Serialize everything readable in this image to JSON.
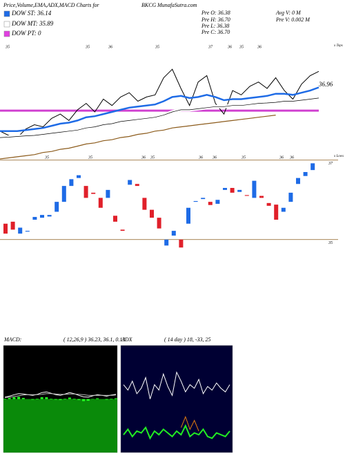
{
  "header": {
    "title": "Price,Volume,EMA,ADX,MACD Charts for",
    "symbol": "BKCG",
    "site": "MunafaSutra.com",
    "stats": [
      "Pre O: 36.38",
      "Avg V: 0  M",
      "Pre H: 36.70",
      "Pre V: 0.002  M",
      "Pre L: 36.38",
      "Pre C: 36.70"
    ]
  },
  "chart_data": [
    {
      "type": "line",
      "legend": [
        {
          "label": "DOW ST: 36.14",
          "color": "#1e6be6"
        },
        {
          "label": "DOW MT: 35.89",
          "color": "#ffffff"
        },
        {
          "label": "DOW PT: 0",
          "color": "#e040e0"
        }
      ],
      "ylim": [
        33,
        38.5
      ],
      "series": [
        {
          "color": "#000000",
          "width": 1,
          "values": [
            34.3,
            34.1,
            34.0,
            34.4,
            34.6,
            34.5,
            34.9,
            35.1,
            34.8,
            35.3,
            35.6,
            35.2,
            35.8,
            35.5,
            35.9,
            36.1,
            35.7,
            35.9,
            36.0,
            36.8,
            37.2,
            36.3,
            35.5,
            36.6,
            36.9,
            35.6,
            35.1,
            36.2,
            36.0,
            36.4,
            36.6,
            36.3,
            36.8,
            36.2,
            35.8,
            36.5,
            36.9,
            37.1
          ]
        },
        {
          "color": "#1e6be6",
          "width": 2.5,
          "values": [
            34.3,
            34.3,
            34.3,
            34.35,
            34.4,
            34.45,
            34.55,
            34.65,
            34.7,
            34.8,
            34.95,
            35.0,
            35.1,
            35.2,
            35.3,
            35.4,
            35.45,
            35.5,
            35.55,
            35.7,
            35.9,
            35.95,
            35.85,
            35.9,
            36.0,
            35.9,
            35.75,
            35.8,
            35.8,
            35.85,
            35.9,
            35.95,
            36.05,
            36.05,
            36.0,
            36.1,
            36.2,
            36.35
          ]
        },
        {
          "color": "#555555",
          "width": 3,
          "values": [
            34.0,
            34.02,
            34.05,
            34.08,
            34.1,
            34.15,
            34.2,
            34.25,
            34.3,
            34.35,
            34.45,
            34.5,
            34.6,
            34.65,
            34.75,
            34.8,
            34.85,
            34.9,
            34.95,
            35.05,
            35.2,
            35.3,
            35.3,
            35.35,
            35.4,
            35.45,
            35.45,
            35.5,
            35.5,
            35.55,
            35.6,
            35.62,
            35.65,
            35.7,
            35.7,
            35.75,
            35.8,
            35.85
          ]
        },
        {
          "color": "#8b5a1a",
          "width": 1.2,
          "values": [
            33.0,
            33.05,
            33.1,
            33.15,
            33.2,
            33.3,
            33.35,
            33.45,
            33.5,
            33.6,
            33.7,
            33.75,
            33.85,
            33.9,
            34.0,
            34.05,
            34.15,
            34.2,
            34.3,
            34.35,
            34.45,
            34.5,
            34.55,
            34.6,
            34.65,
            34.7,
            34.75,
            34.8,
            34.85,
            34.9,
            34.95,
            35.0,
            35.05,
            null,
            null,
            null,
            null,
            null
          ]
        }
      ],
      "reference_line": {
        "value": 35.26,
        "color": "#d040d0"
      },
      "top_labels": [
        "35",
        "35",
        "36",
        "35",
        "37",
        "36",
        "35",
        "36"
      ],
      "bottom_labels": [
        "35",
        "35",
        "36",
        "35",
        "36",
        "36",
        "35",
        "36",
        "36"
      ],
      "tops_label": "x Tops",
      "lows_label": "x Lows",
      "last_price_label": "36.96"
    },
    {
      "type": "candlestick",
      "open": [
        35.4,
        35.45,
        35.15,
        35.2,
        35.5,
        35.55,
        35.58,
        35.7,
        35.95,
        36.35,
        36.55,
        36.35,
        36.18,
        36.05,
        36.05,
        35.6,
        35.25,
        36.38,
        36.4,
        36.05,
        35.75,
        35.55,
        34.85,
        35.1,
        35.0,
        35.4,
        35.95,
        36.02,
        35.95,
        35.9,
        36.25,
        36.3,
        36.2,
        36.12,
        36.05,
        36.1,
        35.92,
        35.88,
        35.7,
        35.95,
        36.4,
        36.6,
        36.75
      ],
      "close": [
        35.15,
        35.25,
        35.3,
        35.22,
        35.57,
        35.62,
        35.62,
        35.95,
        36.35,
        36.52,
        36.62,
        36.05,
        36.15,
        35.8,
        36.25,
        35.45,
        35.22,
        36.5,
        36.35,
        35.75,
        35.55,
        35.28,
        35.0,
        35.22,
        34.8,
        35.8,
        35.97,
        36.05,
        35.87,
        36.0,
        36.3,
        36.18,
        36.25,
        36.1,
        36.48,
        36.05,
        35.85,
        35.5,
        35.8,
        36.18,
        36.55,
        36.7,
        36.92
      ],
      "up_color": "#1e6be6",
      "down_color": "#e0202a",
      "ylim": [
        34.7,
        37.1
      ],
      "levels": [
        37,
        35
      ],
      "level_color": "#8b5a1a"
    },
    {
      "type": "macd",
      "title": "MACD:",
      "params": "( 12,26,9 ) 36.23,  36.1,  0.13",
      "ylim": [
        -1.5,
        1.5
      ],
      "series": [
        {
          "color": "#ffffff",
          "values": [
            0.05,
            0.08,
            0.12,
            0.15,
            0.14,
            0.12,
            0.1,
            0.13,
            0.18,
            0.2,
            0.16,
            0.12,
            0.1,
            0.14,
            0.18,
            0.15,
            0.1,
            0.06,
            0.05,
            0.09,
            0.12,
            0.1,
            0.08,
            0.11,
            0.13
          ]
        },
        {
          "color": "#bbbbbb",
          "values": [
            0.04,
            0.05,
            0.07,
            0.09,
            0.11,
            0.12,
            0.12,
            0.12,
            0.13,
            0.15,
            0.15,
            0.14,
            0.13,
            0.13,
            0.14,
            0.14,
            0.13,
            0.12,
            0.1,
            0.1,
            0.1,
            0.1,
            0.1,
            0.1,
            0.11
          ]
        }
      ],
      "histogram": {
        "color": "#22ff22",
        "values": [
          0.01,
          0.03,
          0.05,
          0.06,
          0.03,
          0,
          -0.02,
          0.01,
          0.05,
          0.05,
          0.01,
          -0.02,
          -0.03,
          0.01,
          0.04,
          0.01,
          -0.03,
          -0.06,
          -0.05,
          -0.01,
          0.02,
          0,
          -0.02,
          0.01,
          0.02
        ]
      }
    },
    {
      "type": "adx",
      "title": "ADX",
      "params": "( 14  day ) 18,  -33,  25",
      "ylim": [
        0,
        60
      ],
      "series": [
        {
          "color": "#ffffff",
          "values": [
            38,
            35,
            40,
            33,
            36,
            42,
            30,
            38,
            35,
            44,
            37,
            32,
            45,
            40,
            34,
            38,
            36,
            41,
            33,
            37,
            35,
            39,
            36,
            34,
            38
          ]
        },
        {
          "color": "#22ee22",
          "values": [
            10,
            13,
            9,
            12,
            11,
            14,
            8,
            12,
            10,
            13,
            11,
            9,
            12,
            10,
            15,
            9,
            11,
            10,
            13,
            9,
            8,
            11,
            10,
            9,
            12
          ]
        },
        {
          "color": "#e07a10",
          "values": [
            null,
            null,
            null,
            null,
            null,
            null,
            null,
            null,
            null,
            null,
            null,
            null,
            null,
            14,
            20,
            13,
            18,
            12,
            null,
            null,
            null,
            null,
            null,
            null,
            null
          ]
        }
      ]
    }
  ]
}
